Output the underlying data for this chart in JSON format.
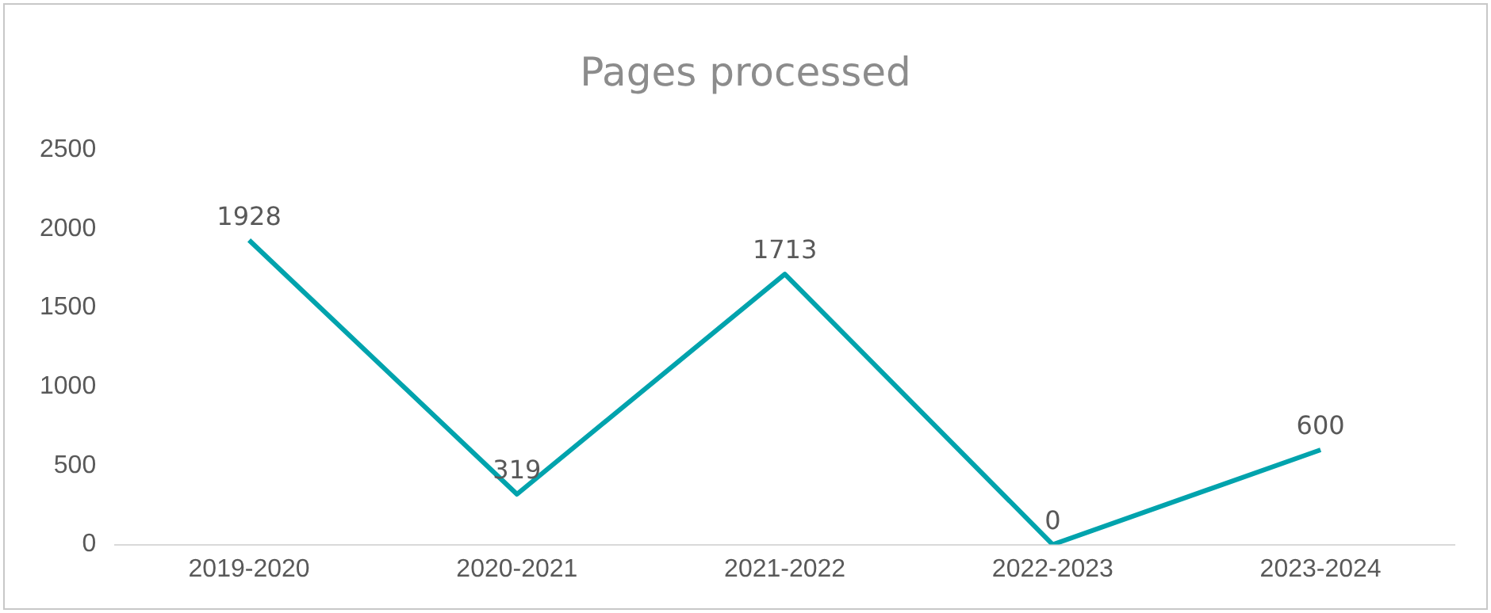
{
  "chart_data": {
    "type": "line",
    "title": "Pages processed",
    "categories": [
      "2019-2020",
      "2020-2021",
      "2021-2022",
      "2022-2023",
      "2023-2024"
    ],
    "series": [
      {
        "color": "#00a3ad",
        "values": [
          1928,
          319,
          1713,
          0,
          600
        ]
      }
    ],
    "ylim": [
      0,
      2500
    ],
    "yticks": [
      0,
      500,
      1000,
      1500,
      2000,
      2500
    ],
    "grid": false,
    "legend": false,
    "marker": "none",
    "line_style": "solid",
    "data_labels": true
  }
}
